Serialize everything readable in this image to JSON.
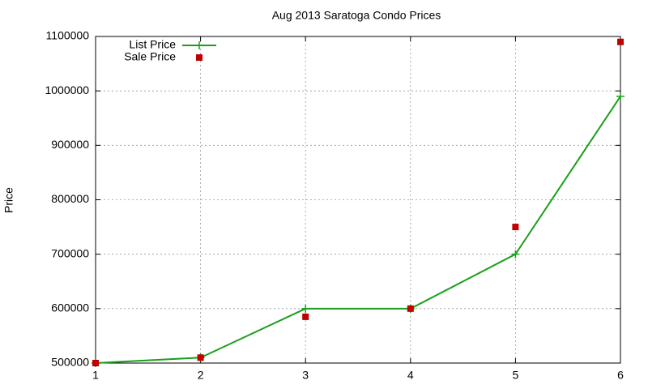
{
  "chart_data": {
    "type": "line",
    "title": "Aug 2013 Saratoga Condo Prices",
    "ylabel": "Price",
    "x": [
      1,
      2,
      3,
      4,
      5,
      6
    ],
    "series": [
      {
        "name": "List Price",
        "color": "#1a9e1a",
        "style": "linespoints",
        "values": [
          500000,
          510000,
          600000,
          600000,
          700000,
          990000
        ]
      },
      {
        "name": "Sale Price",
        "color": "#c00000",
        "style": "points",
        "values": [
          500000,
          510000,
          585000,
          600000,
          750000,
          1090000
        ]
      }
    ],
    "xlim": [
      1,
      6
    ],
    "xticks": [
      1,
      2,
      3,
      4,
      5,
      6
    ],
    "ylim": [
      500000,
      1100000
    ],
    "yticks": [
      500000,
      600000,
      700000,
      800000,
      900000,
      1000000,
      1100000
    ],
    "grid": true,
    "legend": "top-left"
  }
}
